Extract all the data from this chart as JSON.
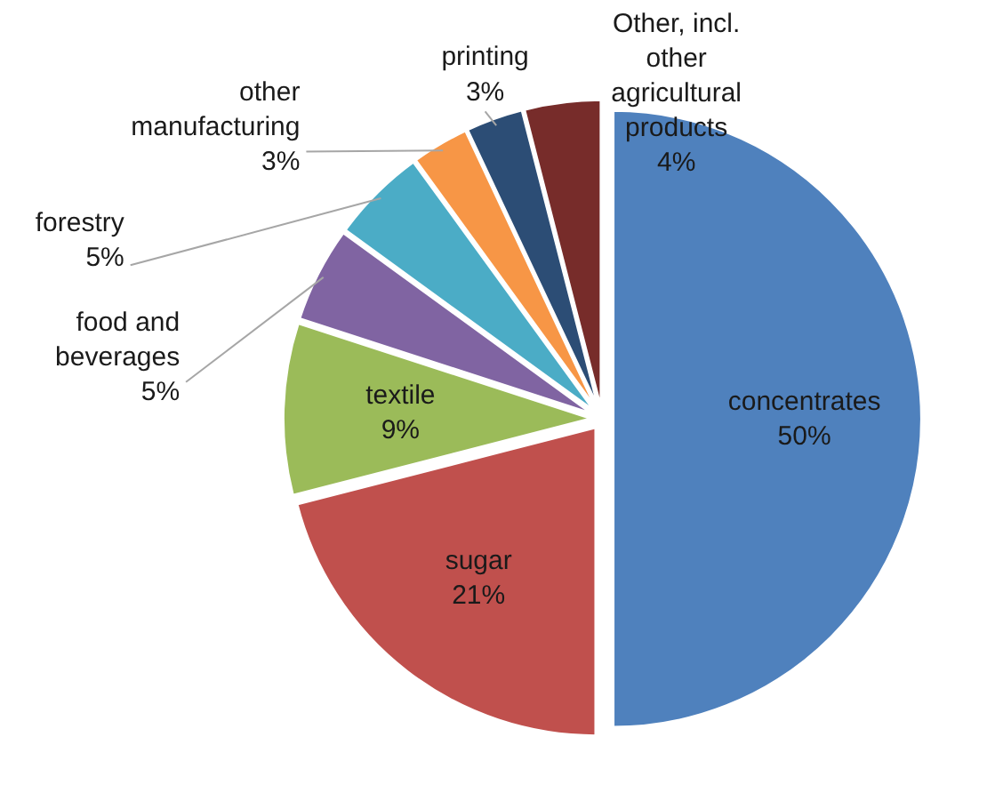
{
  "chart_data": {
    "type": "pie",
    "categories": [
      "concentrates",
      "sugar",
      "textile",
      "food and beverages",
      "forestry",
      "other manufacturing",
      "printing",
      "Other, incl. other agricultural products"
    ],
    "values": [
      50,
      21,
      9,
      5,
      5,
      3,
      3,
      4
    ],
    "value_labels": [
      "50%",
      "21%",
      "9%",
      "5%",
      "5%",
      "3%",
      "3%",
      "4%"
    ],
    "colors": [
      "#4f81bd",
      "#c0504d",
      "#9bbb59",
      "#8064a2",
      "#4bacc6",
      "#f79646",
      "#2c4d75",
      "#772c2a"
    ]
  }
}
